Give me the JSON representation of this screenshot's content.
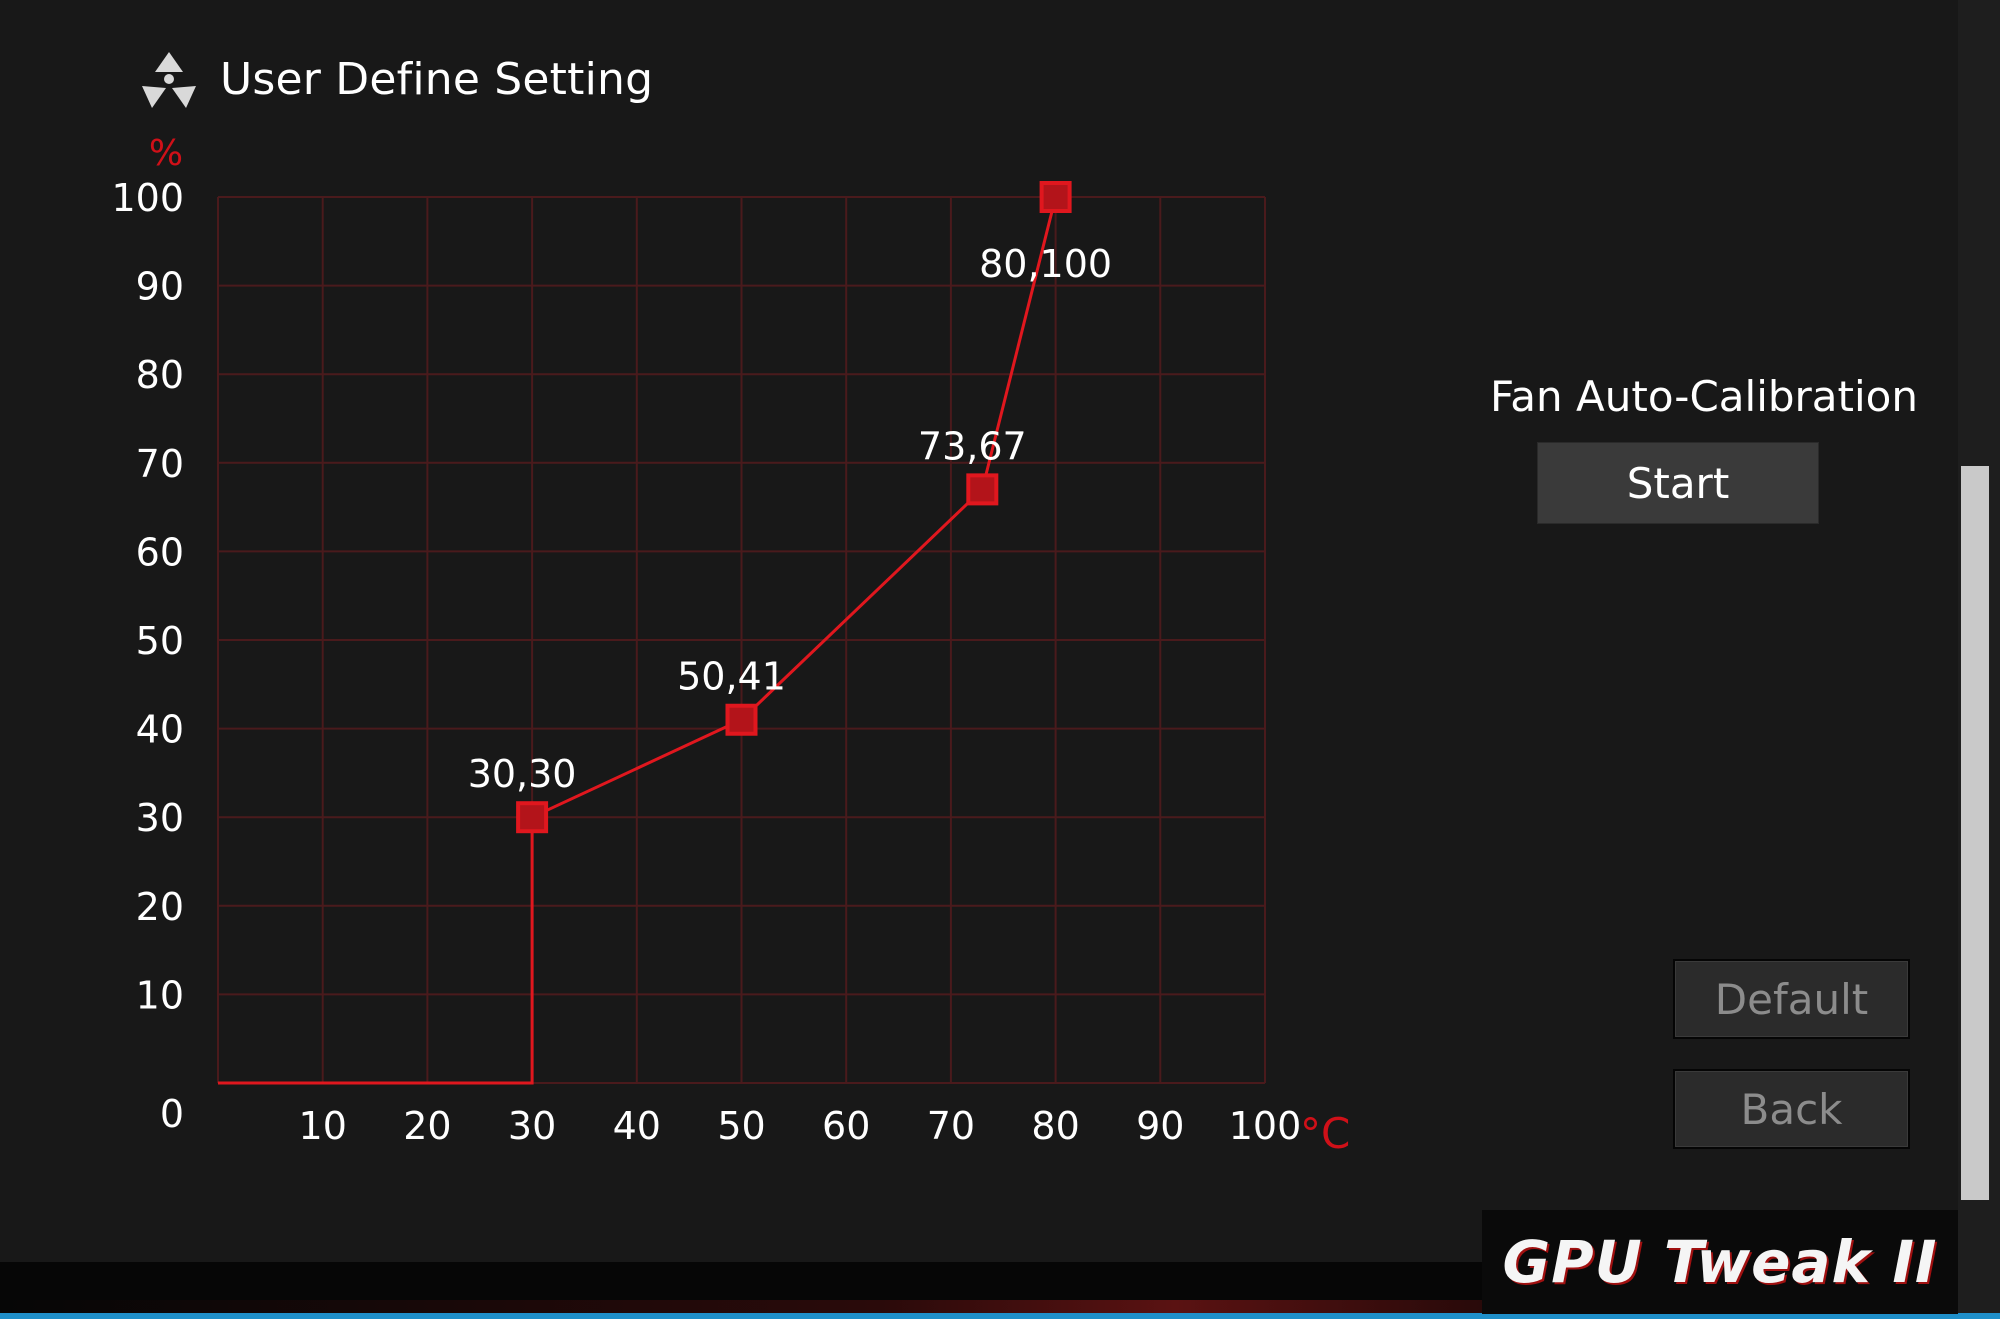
{
  "header": {
    "title": "User Define Setting",
    "icon": "fan-icon"
  },
  "chart_data": {
    "type": "line",
    "title": "",
    "ylabel": "%",
    "xlabel": "°C",
    "xlim": [
      0,
      100
    ],
    "ylim": [
      0,
      100
    ],
    "x_ticks": [
      10,
      20,
      30,
      40,
      50,
      60,
      70,
      80,
      90,
      100
    ],
    "y_ticks": [
      10,
      20,
      30,
      40,
      50,
      60,
      70,
      80,
      90,
      100
    ],
    "origin_label": "0",
    "grid": true,
    "series": [
      {
        "x": [
          0,
          30,
          30,
          50,
          73,
          80
        ],
        "y": [
          0,
          0,
          30,
          41,
          67,
          100
        ]
      }
    ],
    "points": [
      {
        "x": 30,
        "y": 30,
        "label": "30,30"
      },
      {
        "x": 50,
        "y": 41,
        "label": "50,41"
      },
      {
        "x": 73,
        "y": 67,
        "label": "73,67"
      },
      {
        "x": 80,
        "y": 100,
        "label": "80,100"
      }
    ],
    "colors": {
      "line": "#e0171e",
      "grid": "#4a1a1c",
      "axis_unit": "#d01018",
      "tick_text": "#ffffff"
    }
  },
  "calibration": {
    "label": "Fan Auto-Calibration",
    "start_label": "Start"
  },
  "actions": {
    "default_label": "Default",
    "back_label": "Back"
  },
  "brand": {
    "name": "GPU Tweak II"
  }
}
